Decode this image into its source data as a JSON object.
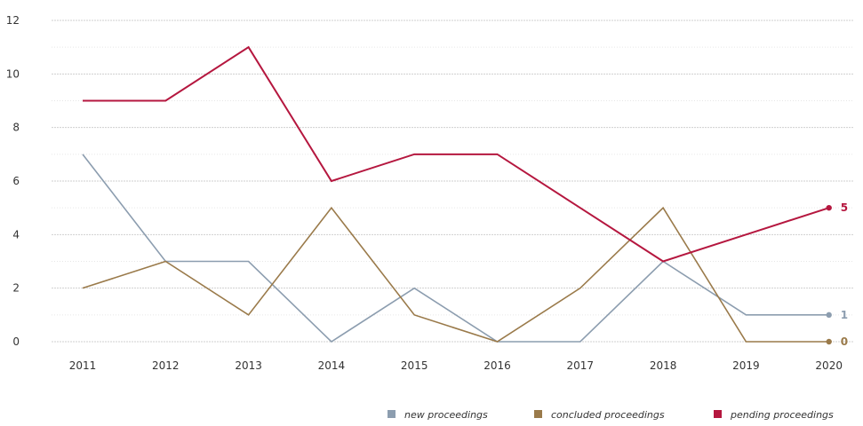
{
  "chart_data": {
    "type": "line",
    "x": [
      "2011",
      "2012",
      "2013",
      "2014",
      "2015",
      "2016",
      "2017",
      "2018",
      "2019",
      "2020"
    ],
    "ylim": [
      0,
      12
    ],
    "yticks": [
      0,
      2,
      4,
      6,
      8,
      10,
      12
    ],
    "grid": true,
    "legend_position": "bottom-right",
    "series": [
      {
        "name": "new proceedings",
        "color": "#8c9daf",
        "values": [
          7,
          3,
          3,
          0,
          2,
          0,
          0,
          3,
          1,
          1
        ],
        "end_label": "1"
      },
      {
        "name": "concluded proceedings",
        "color": "#9a7a4a",
        "values": [
          2,
          3,
          1,
          5,
          1,
          0,
          2,
          5,
          0,
          0
        ],
        "end_label": "0"
      },
      {
        "name": "pending proceedings",
        "color": "#b5173f",
        "values": [
          9,
          9,
          11,
          6,
          7,
          7,
          5,
          3,
          4,
          5
        ],
        "end_label": "5"
      }
    ]
  }
}
